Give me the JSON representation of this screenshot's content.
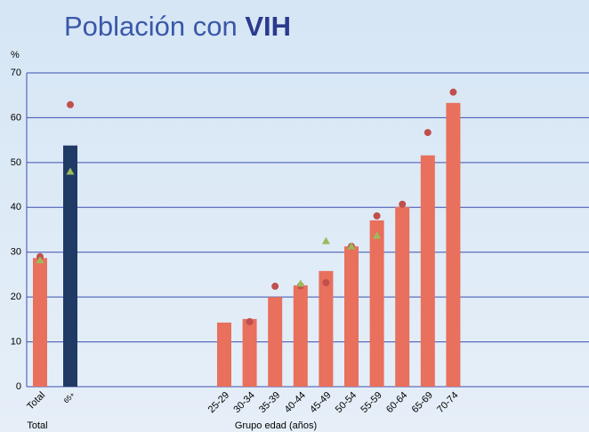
{
  "chart_data": {
    "type": "bar",
    "title": "Población con",
    "title_emphasis": "VIH",
    "ylabel": "%",
    "xlabels": [
      "Total",
      "Grupo edad (años)"
    ],
    "categories": [
      "Total",
      "65+",
      "25-29",
      "30-34",
      "35-39",
      "40-44",
      "45-49",
      "50-54",
      "55-59",
      "60-64",
      "65-69",
      "70-74"
    ],
    "ylim": [
      0,
      70
    ],
    "yticks": [
      0,
      10,
      20,
      30,
      40,
      50,
      60,
      70
    ],
    "grid": true,
    "series": [
      {
        "type": "bar",
        "colors": [
          "#e8705c",
          "#1f3a64",
          "#e8705c",
          "#e8705c",
          "#e8705c",
          "#e8705c",
          "#e8705c",
          "#e8705c",
          "#e8705c",
          "#e8705c",
          "#e8705c",
          "#e8705c"
        ],
        "values": [
          28.7,
          53.8,
          14.3,
          15.1,
          20.0,
          22.6,
          25.8,
          31.3,
          37.1,
          40.1,
          51.6,
          63.3
        ]
      },
      {
        "type": "scatter",
        "marker": "circle",
        "color": "#c0504d",
        "values": [
          29.0,
          62.9,
          null,
          14.5,
          22.4,
          22.5,
          23.2,
          31.3,
          38.1,
          40.7,
          56.7,
          65.7
        ]
      },
      {
        "type": "scatter",
        "marker": "triangle",
        "color": "#9bbb59",
        "values": [
          28.2,
          48.0,
          null,
          null,
          null,
          23.0,
          32.5,
          31.3,
          33.7,
          null,
          null,
          null
        ]
      }
    ]
  }
}
